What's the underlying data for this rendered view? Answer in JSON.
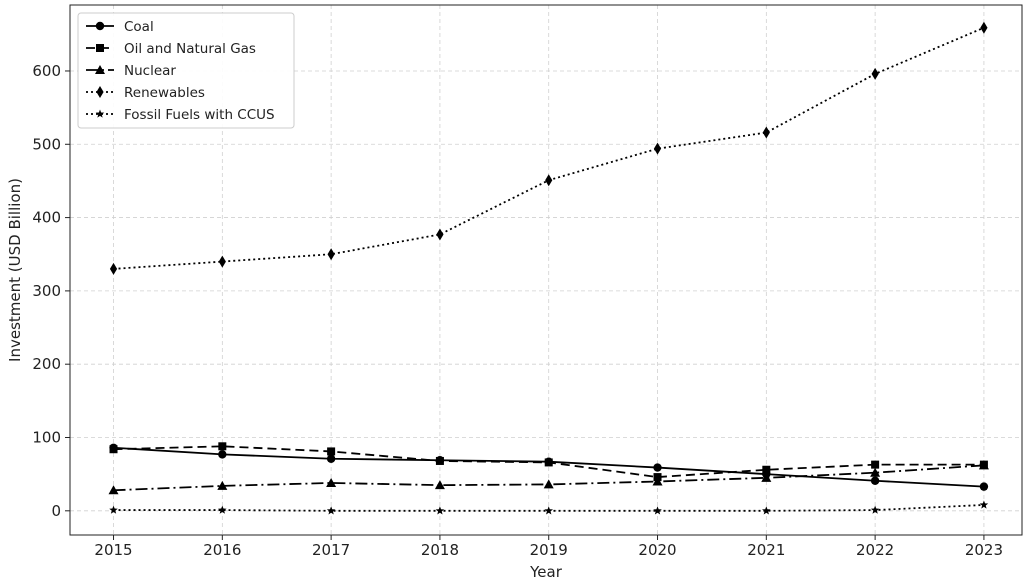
{
  "chart_data": {
    "type": "line",
    "title": "",
    "xlabel": "Year",
    "ylabel": "Investment (USD Billion)",
    "x": [
      2015,
      2016,
      2017,
      2018,
      2019,
      2020,
      2021,
      2022,
      2023
    ],
    "xlim": [
      2014.6,
      2023.35
    ],
    "ylim": [
      -33,
      690
    ],
    "yticks": [
      0,
      100,
      200,
      300,
      400,
      500,
      600
    ],
    "grid": true,
    "legend_position": "top-left",
    "series": [
      {
        "name": "Coal",
        "values": [
          86,
          77,
          71,
          69,
          67,
          59,
          50,
          41,
          33
        ],
        "dash": "",
        "marker": "circle"
      },
      {
        "name": "Oil and Natural Gas",
        "values": [
          84,
          88,
          81,
          68,
          66,
          46,
          56,
          63,
          63
        ],
        "dash": "9 5",
        "marker": "square"
      },
      {
        "name": "Nuclear",
        "values": [
          28,
          34,
          38,
          35,
          36,
          40,
          45,
          52,
          62
        ],
        "dash": "12 4 2 4",
        "marker": "triangle"
      },
      {
        "name": "Renewables",
        "values": [
          330,
          340,
          350,
          377,
          451,
          494,
          516,
          596,
          659
        ],
        "dash": "2 3",
        "marker": "diamond"
      },
      {
        "name": "Fossil Fuels with CCUS",
        "values": [
          1,
          1,
          0,
          0,
          0,
          0,
          0,
          1,
          8
        ],
        "dash": "2 3",
        "marker": "star"
      }
    ]
  }
}
